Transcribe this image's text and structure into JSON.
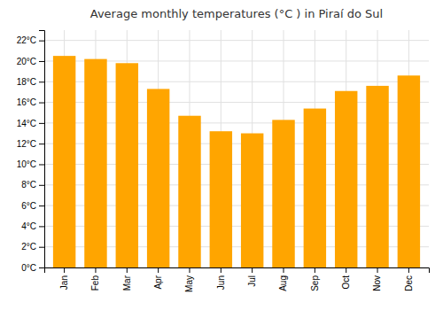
{
  "chart_data": {
    "type": "bar",
    "title": "Average monthly temperatures (°C ) in Piraí do Sul",
    "categories": [
      "Jan",
      "Feb",
      "Mar",
      "Apr",
      "May",
      "Jun",
      "Jul",
      "Aug",
      "Sep",
      "Oct",
      "Nov",
      "Dec"
    ],
    "values": [
      20.5,
      20.2,
      19.8,
      17.3,
      14.7,
      13.2,
      13.0,
      14.3,
      15.4,
      17.1,
      17.6,
      18.6
    ],
    "color": "#FFA500",
    "ylim": [
      0,
      23
    ],
    "yticks": [
      {
        "value": 0,
        "label": "0°C"
      },
      {
        "value": 2,
        "label": "2°C"
      },
      {
        "value": 4,
        "label": "4°C"
      },
      {
        "value": 6,
        "label": "6°C"
      },
      {
        "value": 8,
        "label": "8°C"
      },
      {
        "value": 10,
        "label": "10°C"
      },
      {
        "value": 12,
        "label": "12°C"
      },
      {
        "value": 14,
        "label": "14°C"
      },
      {
        "value": 16,
        "label": "16°C"
      },
      {
        "value": 18,
        "label": "18°C"
      },
      {
        "value": 20,
        "label": "20°C"
      },
      {
        "value": 22,
        "label": "22°C"
      }
    ],
    "grid": true
  }
}
